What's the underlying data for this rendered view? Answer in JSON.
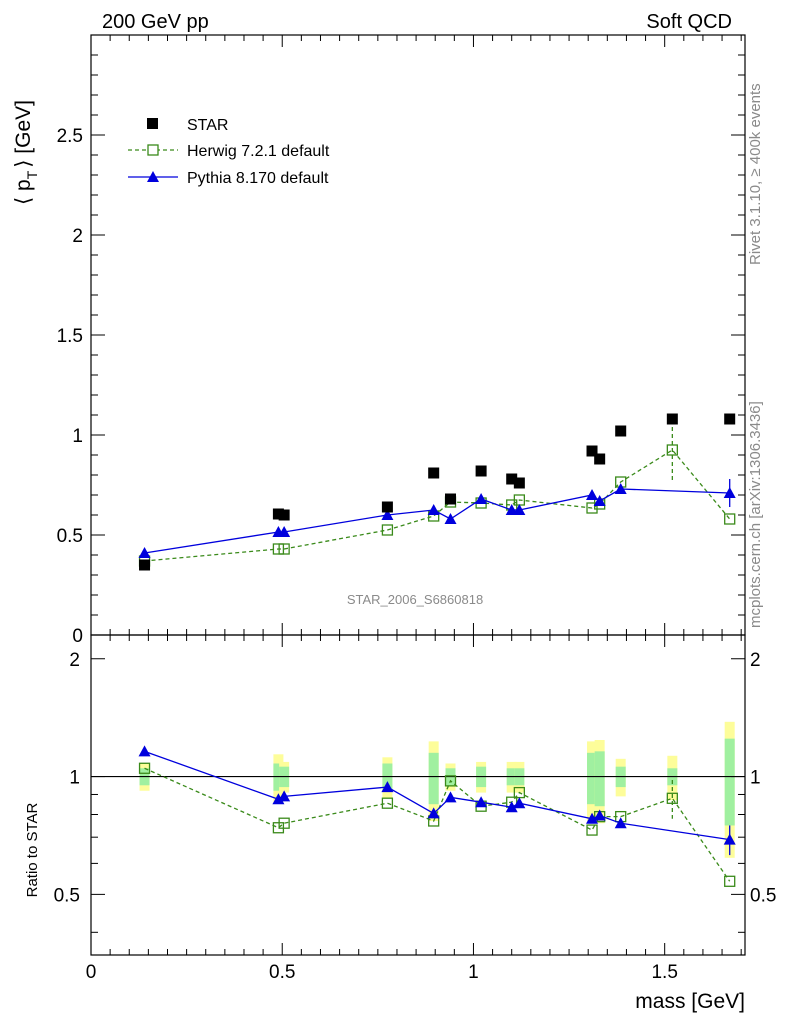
{
  "header": {
    "left": "200 GeV pp",
    "right": "Soft QCD"
  },
  "side": {
    "rivet": "Rivet 3.1.10, ≥ 400k events",
    "mcplots": "mcplots.cern.ch [arXiv:1306.3436]"
  },
  "watermark": "STAR_2006_S6860818",
  "colors": {
    "data": "#000000",
    "herwig": "#3a8a1a",
    "pythia": "#0000dd",
    "band_inner": "#a0f0a0",
    "band_outer": "#fdfd9a"
  },
  "chart_data": {
    "type": "scatter",
    "xlabel": "mass [GeV]",
    "xlim": [
      0,
      1.71
    ],
    "xticks": [
      {
        "v": 0,
        "label": "0"
      },
      {
        "v": 0.5,
        "label": "0.5"
      },
      {
        "v": 1,
        "label": "1"
      },
      {
        "v": 1.5,
        "label": "1.5"
      }
    ],
    "main": {
      "ylabel_main": "⟨ p",
      "ylabel_sub": "T",
      "ylabel_unit": "⟩ [GeV]",
      "ylim": [
        0,
        3.0
      ],
      "yticks": [
        {
          "v": 0,
          "label": "0"
        },
        {
          "v": 0.5,
          "label": "0.5"
        },
        {
          "v": 1,
          "label": "1"
        },
        {
          "v": 1.5,
          "label": "1.5"
        },
        {
          "v": 2,
          "label": "2"
        },
        {
          "v": 2.5,
          "label": "2.5"
        }
      ]
    },
    "ratio": {
      "ylabel": "Ratio to STAR",
      "ylim": [
        0.35,
        2.3
      ],
      "yticks": [
        {
          "v": 0.5,
          "label": "0.5"
        },
        {
          "v": 1,
          "label": "1"
        },
        {
          "v": 2,
          "label": "2"
        }
      ]
    },
    "legend": [
      {
        "name": "STAR",
        "marker": "square-filled",
        "color": "#000000"
      },
      {
        "name": "Herwig 7.2.1 default",
        "marker": "square-open",
        "color": "#3a8a1a",
        "dash": true
      },
      {
        "name": "Pythia 8.170 default",
        "marker": "triangle-filled",
        "color": "#0000dd",
        "dash": false
      }
    ],
    "star": {
      "x": [
        0.14,
        0.49,
        0.505,
        0.775,
        0.896,
        0.94,
        1.02,
        1.1,
        1.12,
        1.31,
        1.33,
        1.385,
        1.52,
        1.67
      ],
      "y": [
        0.35,
        0.605,
        0.6,
        0.64,
        0.81,
        0.68,
        0.82,
        0.78,
        0.76,
        0.92,
        0.88,
        1.02,
        1.08,
        1.08
      ],
      "ratio_inner": [
        0.05,
        0.08,
        0.06,
        0.08,
        0.15,
        0.05,
        0.06,
        0.05,
        0.05,
        0.15,
        0.16,
        0.06,
        0.05,
        0.25
      ],
      "ratio_outer": [
        0.08,
        0.14,
        0.09,
        0.12,
        0.23,
        0.08,
        0.09,
        0.09,
        0.09,
        0.23,
        0.24,
        0.11,
        0.13,
        0.38
      ]
    },
    "herwig": {
      "x": [
        0.14,
        0.49,
        0.505,
        0.775,
        0.896,
        0.94,
        1.02,
        1.1,
        1.12,
        1.31,
        1.33,
        1.385,
        1.52,
        1.67
      ],
      "y": [
        0.37,
        0.43,
        0.43,
        0.525,
        0.595,
        0.665,
        0.66,
        0.65,
        0.675,
        0.635,
        0.655,
        0.765,
        0.925,
        0.58
      ],
      "yerr": [
        0,
        0,
        0,
        0,
        0,
        0,
        0,
        0,
        0,
        0,
        0,
        0,
        0.15,
        0
      ],
      "ratio": [
        1.05,
        0.74,
        0.76,
        0.855,
        0.77,
        0.975,
        0.84,
        0.86,
        0.91,
        0.73,
        0.79,
        0.79,
        0.88,
        0.54
      ],
      "ratio_err": [
        0,
        0,
        0,
        0,
        0,
        0,
        0,
        0,
        0,
        0,
        0,
        0,
        0.1,
        0
      ]
    },
    "pythia": {
      "x": [
        0.14,
        0.49,
        0.505,
        0.775,
        0.896,
        0.94,
        1.02,
        1.1,
        1.12,
        1.31,
        1.33,
        1.385,
        1.67
      ],
      "y": [
        0.41,
        0.515,
        0.515,
        0.6,
        0.625,
        0.58,
        0.68,
        0.625,
        0.625,
        0.7,
        0.67,
        0.73,
        0.71
      ],
      "yerr": [
        0,
        0,
        0,
        0,
        0,
        0,
        0,
        0,
        0,
        0.02,
        0.02,
        0,
        0.07
      ],
      "ratio": [
        1.16,
        0.875,
        0.89,
        0.94,
        0.805,
        0.885,
        0.86,
        0.835,
        0.855,
        0.78,
        0.795,
        0.76,
        0.69
      ],
      "ratio_err": [
        0,
        0,
        0,
        0,
        0,
        0,
        0,
        0,
        0,
        0,
        0,
        0,
        0.06
      ]
    }
  }
}
